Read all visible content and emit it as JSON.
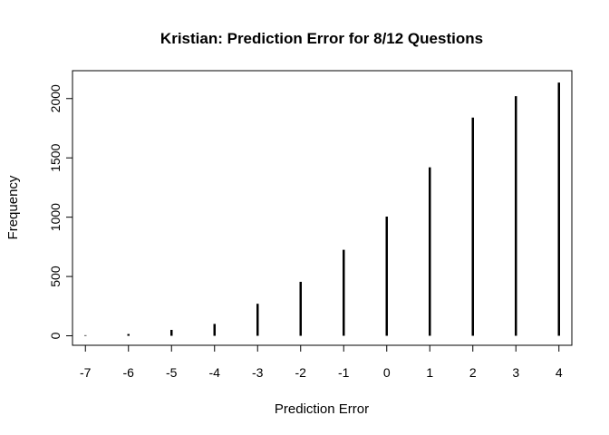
{
  "chart_data": {
    "type": "bar",
    "style": "vertical-lines",
    "title": "Kristian: Prediction Error for 8/12 Questions",
    "xlabel": "Prediction Error",
    "ylabel": "Frequency",
    "categories": [
      "-7",
      "-6",
      "-5",
      "-4",
      "-3",
      "-2",
      "-1",
      "0",
      "1",
      "2",
      "3",
      "4"
    ],
    "x": [
      -7,
      -6,
      -5,
      -4,
      -3,
      -2,
      -1,
      0,
      1,
      2,
      3,
      4
    ],
    "values": [
      5,
      15,
      50,
      100,
      270,
      455,
      725,
      1005,
      1420,
      1840,
      2020,
      2135
    ],
    "xlim": [
      -7.3,
      4.3
    ],
    "ylim": [
      -80,
      2235
    ],
    "yticks": [
      0,
      500,
      1000,
      1500,
      2000
    ],
    "ytick_labels": [
      "0",
      "500",
      "1000",
      "1500",
      "2000"
    ],
    "grid": false,
    "bar_color": "#000000"
  }
}
